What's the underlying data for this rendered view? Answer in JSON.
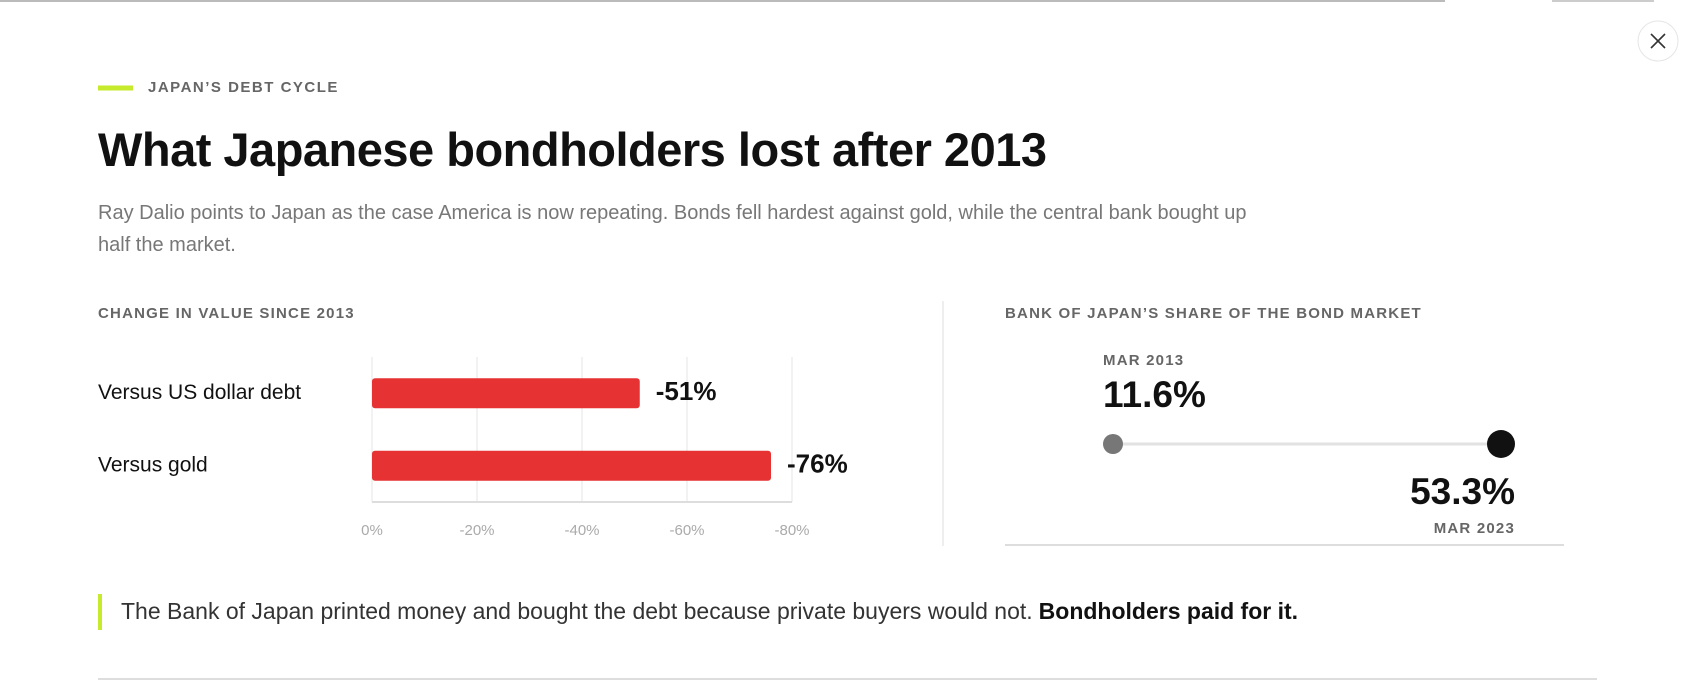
{
  "header": {
    "kicker": "JAPAN’S DEBT CYCLE",
    "title": "What Japanese bondholders lost after 2013",
    "subtitle": "Ray Dalio points to Japan as the case America is now repeating. Bonds fell hardest against gold, while the central bank bought up half the market."
  },
  "chart_data": [
    {
      "type": "bar",
      "title": "CHANGE IN VALUE SINCE 2013",
      "categories": [
        "Versus US dollar debt",
        "Versus gold"
      ],
      "values": [
        -51,
        -76
      ],
      "value_labels": [
        "-51%",
        "-76%"
      ],
      "color": "#e63232",
      "xlim": [
        0,
        -80
      ],
      "xticks": [
        {
          "value": 0,
          "label": "0%"
        },
        {
          "value": -20,
          "label": "-20%"
        },
        {
          "value": -40,
          "label": "-40%"
        },
        {
          "value": -60,
          "label": "-60%"
        },
        {
          "value": -80,
          "label": "-80%"
        }
      ],
      "grid": true
    },
    {
      "type": "dumbbell",
      "title": "BANK OF JAPAN’S SHARE OF THE BOND MARKET",
      "categories": [
        "MAR 2013",
        "MAR 2023"
      ],
      "values": [
        11.6,
        53.3
      ],
      "value_labels": [
        "11.6%",
        "53.3%"
      ],
      "colors": [
        "#777777",
        "#111111"
      ]
    }
  ],
  "quote": {
    "text": "The Bank of Japan printed money and bought the debt because private buyers would not.",
    "emphasis": "Bondholders paid for it."
  }
}
